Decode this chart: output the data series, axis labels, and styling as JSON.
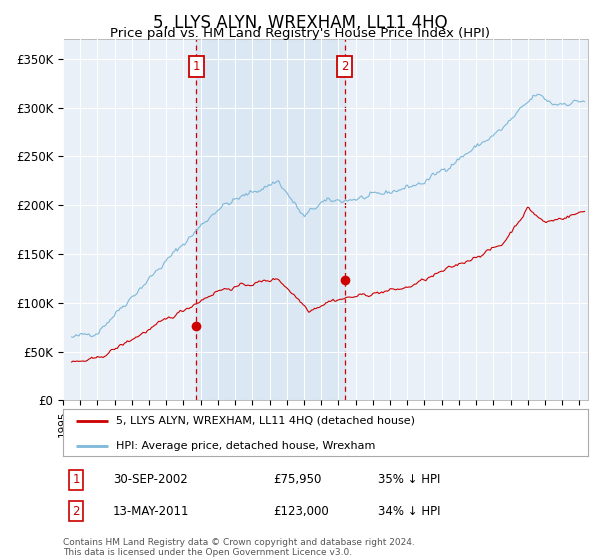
{
  "title": "5, LLYS ALYN, WREXHAM, LL11 4HQ",
  "subtitle": "Price paid vs. HM Land Registry's House Price Index (HPI)",
  "ylabel_ticks": [
    "£0",
    "£50K",
    "£100K",
    "£150K",
    "£200K",
    "£250K",
    "£300K",
    "£350K"
  ],
  "ytick_values": [
    0,
    50000,
    100000,
    150000,
    200000,
    250000,
    300000,
    350000
  ],
  "ylim": [
    0,
    370000
  ],
  "sale1_date_num": 2002.75,
  "sale1_price": 75950,
  "sale1_label": "1",
  "sale2_date_num": 2011.36,
  "sale2_price": 123000,
  "sale2_label": "2",
  "hpi_color": "#7db8d8",
  "price_color": "#cc0000",
  "bg_color": "#ffffff",
  "plot_bg_color": "#eaf0f8",
  "grid_color": "#ffffff",
  "sale_marker_color": "#cc0000",
  "shade_color": "#cfe0ef",
  "legend_label_price": "5, LLYS ALYN, WREXHAM, LL11 4HQ (detached house)",
  "legend_label_hpi": "HPI: Average price, detached house, Wrexham",
  "footer": "Contains HM Land Registry data © Crown copyright and database right 2024.\nThis data is licensed under the Open Government Licence v3.0.",
  "xstart": 1995.5,
  "xend": 2025.5,
  "title_fontsize": 12,
  "subtitle_fontsize": 9.5,
  "sale1_date_str": "30-SEP-2002",
  "sale1_price_str": "£75,950",
  "sale1_pct": "35% ↓ HPI",
  "sale2_date_str": "13-MAY-2011",
  "sale2_price_str": "£123,000",
  "sale2_pct": "34% ↓ HPI"
}
